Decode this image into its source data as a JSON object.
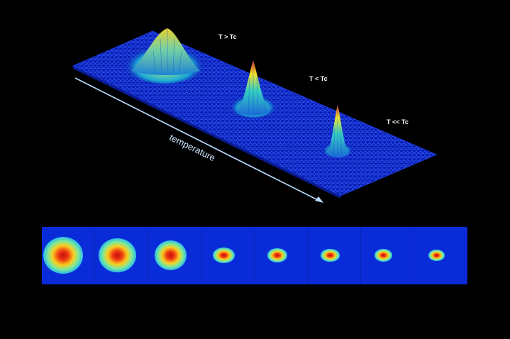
{
  "surface": {
    "labels": [
      {
        "text": "T > Tc"
      },
      {
        "text": "T < Tc"
      },
      {
        "text": "T << Tc"
      }
    ],
    "axis_label": "temperature",
    "peak_colors": [
      "#1030c8",
      "#00c8e0",
      "#f0e020",
      "#e03010"
    ]
  },
  "strip": {
    "frames": [
      {
        "cloud_size": 1.0
      },
      {
        "cloud_size": 0.95
      },
      {
        "cloud_size": 0.82
      },
      {
        "cloud_size": 0.55
      },
      {
        "cloud_size": 0.5
      },
      {
        "cloud_size": 0.47
      },
      {
        "cloud_size": 0.45
      },
      {
        "cloud_size": 0.42
      }
    ],
    "background_color": "#0a2cd8"
  }
}
